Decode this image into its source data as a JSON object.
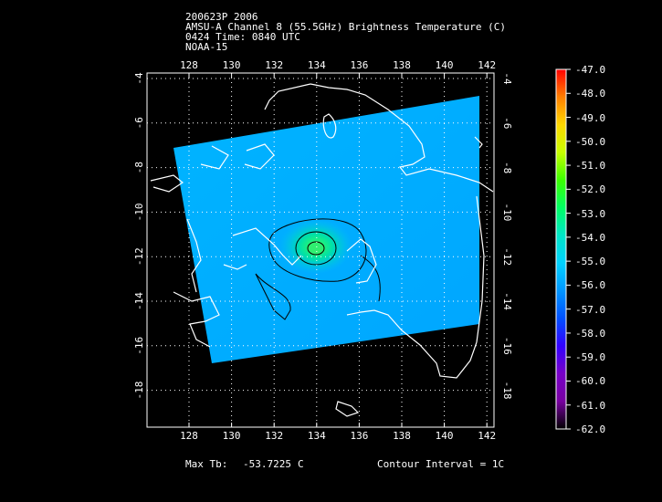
{
  "header": {
    "line1": "200623P 2006",
    "line2": "AMSU-A Channel 8 (55.5GHz) Brightness Temperature (C)",
    "line3": "0424 Time: 0840 UTC",
    "line4": "NOAA-15"
  },
  "map": {
    "lon_labels": [
      "128",
      "130",
      "132",
      "134",
      "136",
      "138",
      "140",
      "142"
    ],
    "lat_labels": [
      "-4",
      "-6",
      "-8",
      "-10",
      "-12",
      "-14",
      "-16",
      "-18"
    ],
    "colors": {
      "background": "#000000",
      "frame": "#ffffff",
      "coast": "#ffffff",
      "contour": "#000000",
      "swath": "#00aaff"
    }
  },
  "colorbar": {
    "labels": [
      "-47.0",
      "-48.0",
      "-49.0",
      "-50.0",
      "-51.0",
      "-52.0",
      "-53.0",
      "-54.0",
      "-55.0",
      "-56.0",
      "-57.0",
      "-58.0",
      "-59.0",
      "-60.0",
      "-61.0",
      "-62.0"
    ],
    "colors": [
      "#ff0000",
      "#ff7f00",
      "#ffd800",
      "#c8ff00",
      "#3cff00",
      "#00ff64",
      "#00e6c8",
      "#00d2ff",
      "#0096ff",
      "#0050ff",
      "#3200ff",
      "#7800c8",
      "#7800a0",
      "#000000"
    ]
  },
  "footer": {
    "max_label": "Max Tb:",
    "max_value": "-53.7225",
    "max_unit": "C",
    "contour": "Contour Interval = 1C"
  }
}
